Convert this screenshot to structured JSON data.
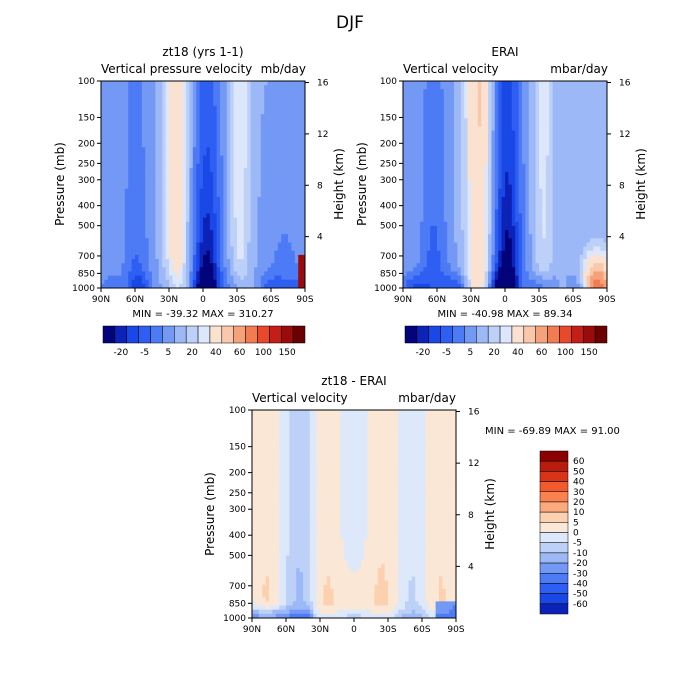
{
  "figure": {
    "title": "DJF"
  },
  "chart_data": [
    {
      "type": "heatmap",
      "panel": "top-left",
      "title": "zt18 (yrs 1-1)",
      "subtitle_left": "Vertical pressure velocity",
      "subtitle_right": "mb/day",
      "ylabel": "Pressure (mb)",
      "ylabel_right": "Height (km)",
      "x_ticks": [
        "90N",
        "60N",
        "30N",
        "0",
        "30S",
        "60S",
        "90S"
      ],
      "y_ticks": [
        "100",
        "150",
        "200",
        "250",
        "300",
        "400",
        "500",
        "700",
        "850",
        "1000"
      ],
      "y_ticks_right": [
        "16",
        "12",
        "8",
        "4"
      ],
      "y_scale": "log",
      "stats": "MIN = -39.32   MAX = 310.27",
      "colorbar_labels": [
        "-20",
        "-5",
        "5",
        "20",
        "40",
        "60",
        "100",
        "150"
      ],
      "colors": [
        "#03037a",
        "#0d22b7",
        "#1a48e6",
        "#2f5ff2",
        "#4d7af5",
        "#7399f5",
        "#9cb8f7",
        "#bdd0f8",
        "#dde7fb",
        "#fbe2d0",
        "#f9c8aa",
        "#f5a27b",
        "#f27c52",
        "#e7492a",
        "#c41f17",
        "#9a0b0b",
        "#6a0000"
      ],
      "field": "model"
    },
    {
      "type": "heatmap",
      "panel": "top-right",
      "title": "ERAI",
      "subtitle_left": "Vertical velocity",
      "subtitle_right": "mbar/day",
      "ylabel": "Pressure (mb)",
      "ylabel_right": "Height (km)",
      "x_ticks": [
        "90N",
        "60N",
        "30N",
        "0",
        "30S",
        "60S",
        "90S"
      ],
      "y_ticks": [
        "100",
        "150",
        "200",
        "250",
        "300",
        "400",
        "500",
        "700",
        "850",
        "1000"
      ],
      "y_ticks_right": [
        "16",
        "12",
        "8",
        "4"
      ],
      "y_scale": "log",
      "stats": "MIN = -40.98   MAX =  89.34",
      "colorbar_labels": [
        "-20",
        "-5",
        "5",
        "20",
        "40",
        "60",
        "100",
        "150"
      ],
      "colors": [
        "#03037a",
        "#0d22b7",
        "#1a48e6",
        "#2f5ff2",
        "#4d7af5",
        "#7399f5",
        "#9cb8f7",
        "#bdd0f8",
        "#dde7fb",
        "#fbe2d0",
        "#f9c8aa",
        "#f5a27b",
        "#f27c52",
        "#e7492a",
        "#c41f17",
        "#9a0b0b",
        "#6a0000"
      ],
      "field": "obs"
    },
    {
      "type": "heatmap",
      "panel": "bottom",
      "title": "zt18 - ERAI",
      "subtitle_left": "Vertical velocity",
      "subtitle_right": "mbar/day",
      "ylabel": "Pressure (mb)",
      "ylabel_right": "Height (km)",
      "x_ticks": [
        "90N",
        "60N",
        "30N",
        "0",
        "30S",
        "60S",
        "90S"
      ],
      "y_ticks": [
        "100",
        "150",
        "200",
        "250",
        "300",
        "400",
        "500",
        "700",
        "850",
        "1000"
      ],
      "y_ticks_right": [
        "16",
        "12",
        "8",
        "4"
      ],
      "y_scale": "log",
      "stats": "MIN = -69.89   MAX =  91.00",
      "colorbar_labels": [
        "60",
        "50",
        "40",
        "30",
        "20",
        "10",
        "5",
        "0",
        "-5",
        "-10",
        "-20",
        "-30",
        "-40",
        "-50",
        "-60"
      ],
      "colors": [
        "#8b0000",
        "#b71c0c",
        "#d93318",
        "#f05a2e",
        "#f98250",
        "#fca97c",
        "#fdd0b0",
        "#fbe7d6",
        "#dde9fb",
        "#bdd0f8",
        "#9cb8f7",
        "#7399f5",
        "#4d7af5",
        "#2f5ff2",
        "#1a48e6",
        "#0d22b7"
      ],
      "field": "diff"
    }
  ]
}
